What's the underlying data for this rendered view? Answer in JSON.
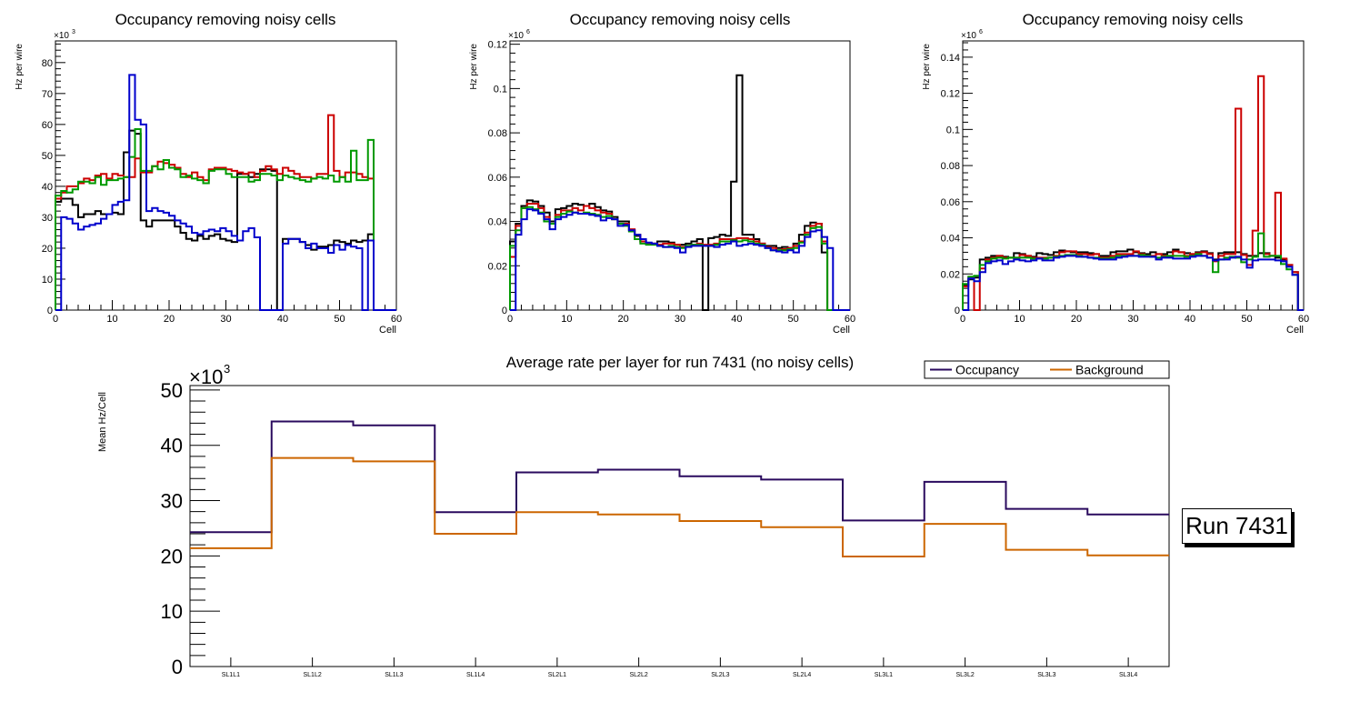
{
  "chart_data": [
    {
      "type": "line",
      "style": "step-histogram",
      "title": "Occupancy removing noisy cells",
      "xlabel": "Cell",
      "ylabel": "Hz per wire",
      "y_multiplier": "×10³",
      "y_exponent": "3",
      "xlim": [
        0,
        60
      ],
      "ylim": [
        0,
        87
      ],
      "xticks": [
        "0",
        "10",
        "20",
        "30",
        "40",
        "50",
        "60"
      ],
      "yticks": [
        "0",
        "10",
        "20",
        "30",
        "40",
        "50",
        "60",
        "70",
        "80"
      ],
      "ytick_values": [
        0,
        10,
        20,
        30,
        40,
        50,
        60,
        70,
        80
      ],
      "series": [
        {
          "name": "black",
          "color": "#000000",
          "values": [
            35,
            36,
            36,
            34,
            30,
            31,
            31,
            32,
            31,
            31,
            31.5,
            31,
            51,
            58,
            57,
            29,
            27,
            29,
            29,
            29,
            29,
            27,
            25,
            23,
            22.5,
            24,
            23,
            24,
            24.5,
            23,
            22.5,
            22,
            44,
            44,
            43,
            44,
            45.5,
            45.5,
            45,
            0,
            23,
            23,
            23,
            22,
            21,
            19.5,
            20.5,
            20.5,
            21,
            22.5,
            22,
            21.5,
            22.5,
            22,
            22.5,
            24.5,
            0,
            0,
            0,
            0
          ]
        },
        {
          "name": "red",
          "color": "#cc0000",
          "values": [
            36,
            38,
            40,
            40,
            41,
            42.5,
            42,
            43.5,
            44,
            42.5,
            44,
            43.5,
            43,
            43,
            49,
            44.5,
            44.5,
            46.5,
            48,
            47.5,
            47,
            46,
            44,
            43,
            44.5,
            43,
            42,
            45.5,
            46,
            46,
            45.5,
            45,
            44.5,
            44,
            44.5,
            43,
            45,
            46.5,
            45.5,
            44,
            46,
            45,
            44,
            43,
            43,
            42.5,
            44,
            44,
            63,
            45,
            43,
            44.5,
            44.5,
            44,
            43,
            42.5,
            0,
            0,
            0,
            0
          ]
        },
        {
          "name": "green",
          "color": "#009900",
          "values": [
            37,
            38.5,
            38,
            39,
            41.5,
            41.5,
            41,
            43,
            40.5,
            42,
            42,
            42.5,
            43,
            49.5,
            58.5,
            45,
            45,
            46.5,
            45.5,
            48.5,
            46,
            45.5,
            43,
            43.5,
            42.5,
            42,
            41,
            45,
            45.5,
            45.5,
            44,
            43,
            43,
            43,
            41.5,
            42,
            44,
            44,
            43.5,
            42,
            43.5,
            43,
            42.5,
            42,
            41.5,
            42.5,
            43,
            42.5,
            43.5,
            41.5,
            43,
            41.5,
            51.5,
            42,
            42,
            55,
            0,
            0,
            0,
            0
          ]
        },
        {
          "name": "blue",
          "color": "#0000cc",
          "values": [
            0,
            30,
            29.5,
            28,
            26,
            27,
            27.5,
            28,
            29.5,
            31,
            34,
            35,
            35.5,
            76,
            61.5,
            60,
            32,
            33,
            32,
            31.5,
            30.5,
            29,
            28,
            27,
            25,
            24.5,
            25.5,
            26,
            25.5,
            26.5,
            25.5,
            24,
            22.5,
            25.5,
            26.5,
            23.5,
            0,
            0,
            0,
            0,
            21.5,
            23,
            23,
            22,
            20,
            21.5,
            20,
            20,
            18.5,
            21,
            19.5,
            21,
            20.5,
            20,
            0,
            22.5,
            0,
            0,
            0,
            0
          ]
        }
      ]
    },
    {
      "type": "line",
      "style": "step-histogram",
      "title": "Occupancy removing noisy cells",
      "xlabel": "Cell",
      "ylabel": "Hz per wire",
      "y_multiplier": "×10⁶",
      "y_exponent": "6",
      "xlim": [
        0,
        60
      ],
      "ylim": [
        0,
        0.1215
      ],
      "xticks": [
        "0",
        "10",
        "20",
        "30",
        "40",
        "50",
        "60"
      ],
      "yticks": [
        "0",
        "0.02",
        "0.04",
        "0.06",
        "0.08",
        "0.1",
        "0.12"
      ],
      "ytick_values": [
        0,
        0.02,
        0.04,
        0.06,
        0.08,
        0.1,
        0.12
      ],
      "series": [
        {
          "name": "black",
          "color": "#000000",
          "values": [
            0.031,
            0.039,
            0.047,
            0.0495,
            0.049,
            0.047,
            0.044,
            0.04,
            0.0455,
            0.046,
            0.047,
            0.048,
            0.0475,
            0.047,
            0.048,
            0.0465,
            0.045,
            0.0445,
            0.042,
            0.04,
            0.04,
            0.036,
            0.0335,
            0.031,
            0.03,
            0.03,
            0.031,
            0.031,
            0.0305,
            0.0295,
            0.0295,
            0.03,
            0.031,
            0.032,
            0,
            0.0325,
            0.033,
            0.034,
            0.0335,
            0.058,
            0.106,
            0.034,
            0.034,
            0.032,
            0.03,
            0.029,
            0.029,
            0.028,
            0.0285,
            0.028,
            0.03,
            0.034,
            0.038,
            0.0395,
            0.039,
            0.026,
            0,
            0,
            0,
            0
          ]
        },
        {
          "name": "red",
          "color": "#cc0000",
          "values": [
            0.024,
            0.038,
            0.046,
            0.048,
            0.048,
            0.046,
            0.042,
            0.039,
            0.043,
            0.045,
            0.045,
            0.046,
            0.045,
            0.047,
            0.046,
            0.045,
            0.044,
            0.0435,
            0.041,
            0.039,
            0.039,
            0.0365,
            0.034,
            0.031,
            0.03,
            0.03,
            0.0295,
            0.03,
            0.03,
            0.0295,
            0.0285,
            0.029,
            0.0295,
            0.03,
            0.0295,
            0.0295,
            0.03,
            0.032,
            0.032,
            0.032,
            0.0325,
            0.0325,
            0.032,
            0.031,
            0.03,
            0.0285,
            0.028,
            0.027,
            0.0275,
            0.028,
            0.029,
            0.031,
            0.035,
            0.038,
            0.039,
            0.031,
            0,
            0,
            0,
            0
          ]
        },
        {
          "name": "green",
          "color": "#009900",
          "values": [
            0.029,
            0.036,
            0.046,
            0.0465,
            0.0455,
            0.044,
            0.04,
            0.039,
            0.042,
            0.0435,
            0.0445,
            0.044,
            0.0435,
            0.044,
            0.0435,
            0.043,
            0.042,
            0.0425,
            0.041,
            0.039,
            0.038,
            0.0355,
            0.032,
            0.03,
            0.0295,
            0.0295,
            0.029,
            0.0285,
            0.029,
            0.0285,
            0.028,
            0.029,
            0.0295,
            0.0295,
            0.029,
            0.029,
            0.0295,
            0.031,
            0.031,
            0.0315,
            0.031,
            0.0315,
            0.031,
            0.03,
            0.0295,
            0.028,
            0.027,
            0.027,
            0.027,
            0.0275,
            0.028,
            0.0305,
            0.034,
            0.037,
            0.0375,
            0.03,
            0,
            0,
            0,
            0
          ]
        },
        {
          "name": "blue",
          "color": "#0000cc",
          "values": [
            0,
            0.034,
            0.041,
            0.0455,
            0.045,
            0.0435,
            0.041,
            0.0365,
            0.041,
            0.042,
            0.043,
            0.044,
            0.0435,
            0.0435,
            0.043,
            0.0425,
            0.0405,
            0.0415,
            0.041,
            0.038,
            0.0385,
            0.036,
            0.034,
            0.032,
            0.0305,
            0.03,
            0.029,
            0.0285,
            0.0285,
            0.028,
            0.026,
            0.0285,
            0.029,
            0.029,
            0.029,
            0.029,
            0.0285,
            0.0295,
            0.03,
            0.031,
            0.029,
            0.0295,
            0.03,
            0.0295,
            0.029,
            0.028,
            0.027,
            0.0265,
            0.026,
            0.027,
            0.026,
            0.029,
            0.033,
            0.0355,
            0.036,
            0.033,
            0.028,
            0,
            0,
            0
          ]
        }
      ]
    },
    {
      "type": "line",
      "style": "step-histogram",
      "title": "Occupancy removing noisy cells",
      "xlabel": "Cell",
      "ylabel": "Hz per wire",
      "y_multiplier": "×10⁶",
      "y_exponent": "6",
      "xlim": [
        0,
        60
      ],
      "ylim": [
        0,
        0.149
      ],
      "xticks": [
        "0",
        "10",
        "20",
        "30",
        "40",
        "50",
        "60"
      ],
      "yticks": [
        "0",
        "0.02",
        "0.04",
        "0.06",
        "0.08",
        "0.1",
        "0.12",
        "0.14"
      ],
      "ytick_values": [
        0,
        0.02,
        0.04,
        0.06,
        0.08,
        0.1,
        0.12,
        0.14
      ],
      "series": [
        {
          "name": "black",
          "color": "#000000",
          "values": [
            0.014,
            0.017,
            0.018,
            0.028,
            0.029,
            0.03,
            0.03,
            0.0295,
            0.029,
            0.0315,
            0.031,
            0.03,
            0.0295,
            0.0315,
            0.031,
            0.0305,
            0.032,
            0.033,
            0.0325,
            0.032,
            0.032,
            0.032,
            0.0315,
            0.031,
            0.03,
            0.03,
            0.032,
            0.0325,
            0.0325,
            0.0335,
            0.032,
            0.0315,
            0.031,
            0.032,
            0.031,
            0.031,
            0.032,
            0.0335,
            0.032,
            0.0315,
            0.031,
            0.032,
            0.0325,
            0.0315,
            0.028,
            0.0315,
            0.032,
            0.032,
            0.032,
            0.031,
            0.03,
            0.03,
            0.0315,
            0.0315,
            0.03,
            0.029,
            0.028,
            0.025,
            0.021,
            0
          ]
        },
        {
          "name": "red",
          "color": "#cc0000",
          "values": [
            0.013,
            0.018,
            0,
            0.023,
            0.028,
            0.029,
            0.03,
            0.029,
            0.029,
            0.029,
            0.0305,
            0.03,
            0.029,
            0.029,
            0.029,
            0.029,
            0.03,
            0.032,
            0.0325,
            0.0325,
            0.031,
            0.031,
            0.0305,
            0.031,
            0.029,
            0.029,
            0.03,
            0.031,
            0.031,
            0.031,
            0.0325,
            0.031,
            0.03,
            0.03,
            0.031,
            0.03,
            0.03,
            0.0325,
            0.032,
            0.03,
            0.031,
            0.0315,
            0.032,
            0.031,
            0.027,
            0.03,
            0.031,
            0.031,
            0.1115,
            0.0305,
            0.025,
            0.044,
            0.1295,
            0.031,
            0.03,
            0.065,
            0.0285,
            0.025,
            0.021,
            0
          ]
        },
        {
          "name": "green",
          "color": "#009900",
          "values": [
            0.0145,
            0.0185,
            0.019,
            0.025,
            0.027,
            0.0285,
            0.029,
            0.0285,
            0.029,
            0.029,
            0.029,
            0.029,
            0.0285,
            0.0285,
            0.0285,
            0.029,
            0.0295,
            0.03,
            0.0305,
            0.0305,
            0.03,
            0.0295,
            0.029,
            0.029,
            0.0285,
            0.0285,
            0.029,
            0.03,
            0.03,
            0.03,
            0.03,
            0.0305,
            0.03,
            0.0295,
            0.029,
            0.0295,
            0.03,
            0.03,
            0.03,
            0.0295,
            0.03,
            0.031,
            0.03,
            0.029,
            0.021,
            0.028,
            0.029,
            0.0295,
            0.029,
            0.0265,
            0.028,
            0.0295,
            0.0425,
            0.0295,
            0.03,
            0.03,
            0.0255,
            0.0225,
            0.0195,
            0
          ]
        },
        {
          "name": "blue",
          "color": "#0000cc",
          "values": [
            0,
            0.0175,
            0.016,
            0.021,
            0.026,
            0.027,
            0.0275,
            0.0255,
            0.027,
            0.028,
            0.0275,
            0.027,
            0.0275,
            0.0285,
            0.0275,
            0.0275,
            0.029,
            0.0295,
            0.03,
            0.03,
            0.0295,
            0.0295,
            0.029,
            0.0285,
            0.028,
            0.028,
            0.028,
            0.029,
            0.0295,
            0.03,
            0.03,
            0.0295,
            0.0295,
            0.0295,
            0.028,
            0.029,
            0.029,
            0.0285,
            0.0285,
            0.0285,
            0.0295,
            0.03,
            0.03,
            0.029,
            0.0275,
            0.028,
            0.028,
            0.029,
            0.0295,
            0.028,
            0.0235,
            0.0275,
            0.028,
            0.028,
            0.028,
            0.0275,
            0.027,
            0.024,
            0.0195,
            0
          ]
        }
      ]
    },
    {
      "type": "line",
      "style": "step-histogram",
      "title": "Average rate per layer for run 7431 (no noisy cells)",
      "xlabel": "",
      "ylabel": "Mean Hz/Cell",
      "y_multiplier": "×10³",
      "y_exponent": "3",
      "ylim": [
        0,
        50.8
      ],
      "yticks": [
        "0",
        "10",
        "20",
        "30",
        "40",
        "50"
      ],
      "ytick_values": [
        0,
        10,
        20,
        30,
        40,
        50
      ],
      "categories": [
        "SL1L1",
        "SL1L2",
        "SL1L3",
        "SL1L4",
        "SL2L1",
        "SL2L2",
        "SL2L3",
        "SL2L4",
        "SL3L1",
        "SL3L2",
        "SL3L3",
        "SL3L4"
      ],
      "legend": {
        "position": "top-right",
        "entries": [
          "Occupancy",
          "Background"
        ]
      },
      "series": [
        {
          "name": "Occupancy",
          "color": "#2a0a5e",
          "values": [
            24.3,
            44.3,
            43.6,
            27.9,
            35.1,
            35.6,
            34.4,
            33.8,
            26.4,
            33.4,
            28.5,
            27.5
          ]
        },
        {
          "name": "Background",
          "color": "#cc6600",
          "values": [
            21.4,
            37.7,
            37.1,
            24.0,
            27.9,
            27.5,
            26.3,
            25.2,
            19.9,
            25.8,
            21.1,
            20.1
          ]
        }
      ],
      "annotation": "Run 7431"
    }
  ]
}
